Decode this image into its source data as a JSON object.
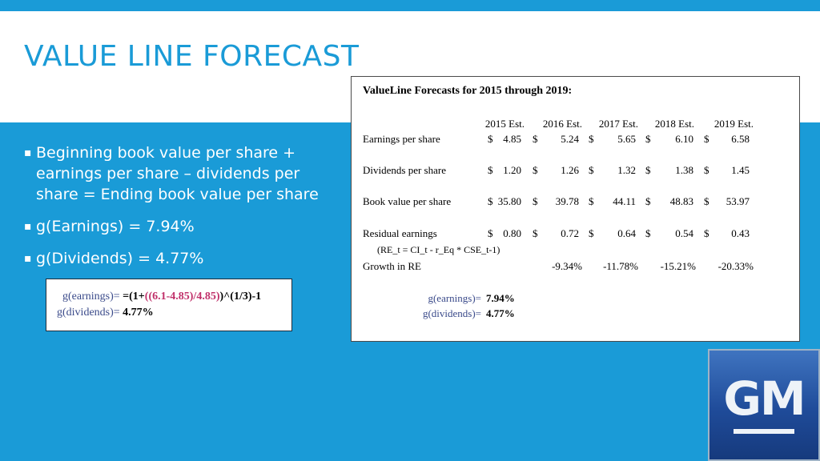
{
  "slide": {
    "title": "VALUE LINE FORECAST",
    "bullets": [
      "Beginning book value per share + earnings per share – dividends per share = Ending book value per share",
      "g(Earnings) = 7.94%",
      "g(Dividends) = 4.77%"
    ]
  },
  "formula_box": {
    "row1_label": "g(earnings)=",
    "row1_formula_a": "=(1+",
    "row1_formula_b": "((6.1-4.85)/4.85)",
    "row1_formula_c": ")^(1/3)-1",
    "row2_label": "g(dividends)=",
    "row2_value": "4.77%"
  },
  "table": {
    "title": "ValueLine Forecasts for 2015 through 2019:",
    "years": [
      "2015 Est.",
      "2016 Est.",
      "2017 Est.",
      "2018 Est.",
      "2019 Est."
    ],
    "rows": [
      {
        "label": "Earnings per share",
        "values": [
          "4.85",
          "5.24",
          "5.65",
          "6.10",
          "6.58"
        ]
      },
      {
        "label": "Dividends per share",
        "values": [
          "1.20",
          "1.26",
          "1.32",
          "1.38",
          "1.45"
        ]
      },
      {
        "label": "Book value per share",
        "values": [
          "35.80",
          "39.78",
          "44.11",
          "48.83",
          "53.97"
        ]
      },
      {
        "label": "Residual earnings",
        "values": [
          "0.80",
          "0.72",
          "0.64",
          "0.54",
          "0.43"
        ]
      }
    ],
    "currency": "$",
    "re_formula": "(RE_t = CI_t - r_Eq * CSE_t-1)",
    "growth_label": "Growth in RE",
    "growth_values": [
      "-9.34%",
      "-11.78%",
      "-15.21%",
      "-20.33%"
    ],
    "g_earnings_label": "g(earnings)=",
    "g_earnings_value": "7.94%",
    "g_dividends_label": "g(dividends)=",
    "g_dividends_value": "4.77%"
  },
  "logo": {
    "text": "GM"
  },
  "colors": {
    "accent": "#1a9bd7",
    "gm_blue": "#1f4b99"
  }
}
